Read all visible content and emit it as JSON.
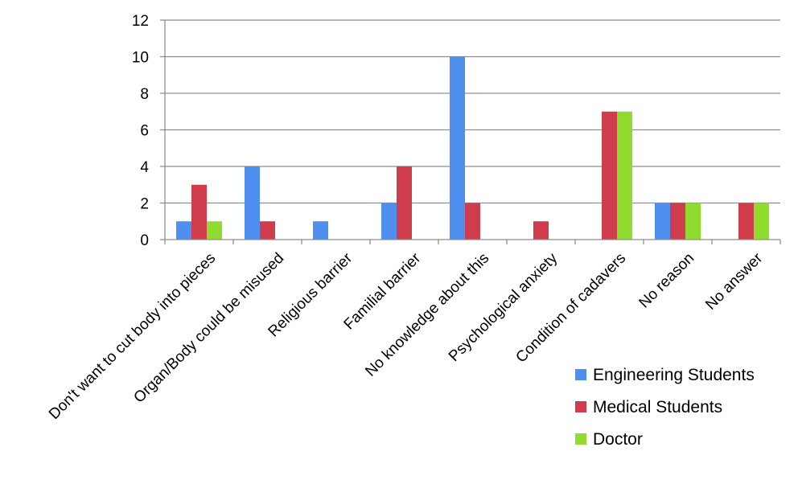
{
  "chart_data": {
    "type": "bar",
    "title": "",
    "xlabel": "",
    "ylabel": "",
    "ylim": [
      0,
      12
    ],
    "yticks": [
      0,
      2,
      4,
      6,
      8,
      10,
      12
    ],
    "grid": true,
    "legend_position": "bottom-right",
    "categories": [
      "Don't want to cut body into pieces",
      "Organ/Body could be misused",
      "Religious barrier",
      "Familial barrier",
      "No knowledge about this",
      "Psychological anxiety",
      "Condition of cadavers",
      "No reason",
      "No answer"
    ],
    "series": [
      {
        "name": "Engineering Students",
        "color": "#4f8ff0",
        "values": [
          1,
          4,
          1,
          2,
          10,
          0,
          0,
          2,
          0
        ]
      },
      {
        "name": "Medical Students",
        "color": "#cf3d4d",
        "values": [
          3,
          1,
          0,
          4,
          2,
          1,
          7,
          2,
          2
        ]
      },
      {
        "name": "Doctor",
        "color": "#8fdc2e",
        "values": [
          1,
          0,
          0,
          0,
          0,
          0,
          7,
          2,
          2
        ]
      }
    ]
  }
}
